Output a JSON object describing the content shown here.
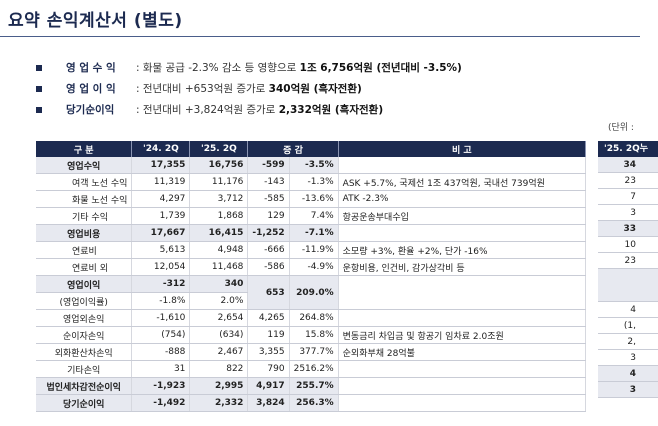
{
  "title": "요약 손익계산서 (별도)",
  "bullets": [
    {
      "label": "영 업 수 익",
      "text_pre": ": 화물 공급 -2.3% 감소 등 영향으로 ",
      "text_bold": "1조 6,756억원 (전년대비 -3.5%)"
    },
    {
      "label": "영 업 이 익",
      "text_pre": ": 전년대비 +653억원 증가로 ",
      "text_bold": "340억원 (흑자전환)"
    },
    {
      "label": "당기순이익",
      "text_pre": ": 전년대비 +3,824억원 증가로 ",
      "text_bold": "2,332억원 (흑자전환)"
    }
  ],
  "unit": "(단위 :",
  "table": {
    "headers": {
      "item": "구 분",
      "q24": "'24. 2Q",
      "q25": "'25. 2Q",
      "diff": "증 감",
      "note": "비 고"
    },
    "rows": {
      "r0": {
        "label": "영업수익",
        "q24": "17,355",
        "q25": "16,756",
        "d1": "-599",
        "d2": "-3.5%",
        "note": ""
      },
      "r1": {
        "label": "여객 노선 수익",
        "q24": "11,319",
        "q25": "11,176",
        "d1": "-143",
        "d2": "-1.3%",
        "note": "ASK +5.7%, 국제선 1조 437억원, 국내선 739억원"
      },
      "r2": {
        "label": "화물 노선 수익",
        "q24": "4,297",
        "q25": "3,712",
        "d1": "-585",
        "d2": "-13.6%",
        "note": "ATK -2.3%"
      },
      "r3": {
        "label": "기타 수익",
        "q24": "1,739",
        "q25": "1,868",
        "d1": "129",
        "d2": "7.4%",
        "note": "항공운송부대수입"
      },
      "r4": {
        "label": "영업비용",
        "q24": "17,667",
        "q25": "16,415",
        "d1": "-1,252",
        "d2": "-7.1%",
        "note": ""
      },
      "r5": {
        "label": "연료비",
        "q24": "5,613",
        "q25": "4,948",
        "d1": "-666",
        "d2": "-11.9%",
        "note": "소모량 +3%, 환율 +2%, 단가 -16%"
      },
      "r6": {
        "label": "연료비 외",
        "q24": "12,054",
        "q25": "11,468",
        "d1": "-586",
        "d2": "-4.9%",
        "note": "운항비용, 인건비, 감가상각비 등"
      },
      "r7": {
        "label": "영업이익",
        "label2": "(영업이익률)",
        "q24": "-312",
        "q24b": "-1.8%",
        "q25": "340",
        "q25b": "2.0%",
        "d1": "653",
        "d2": "209.0%",
        "note": ""
      },
      "r8": {
        "label": "영업외손익",
        "q24": "-1,610",
        "q25": "2,654",
        "d1": "4,265",
        "d2": "264.8%",
        "note": ""
      },
      "r9": {
        "label": "순이자손익",
        "q24": "(754)",
        "q25": "(634)",
        "d1": "119",
        "d2": "15.8%",
        "note": "변동금리 차입금 및 항공기 임차료 2.0조원"
      },
      "r10": {
        "label": "외화환산차손익",
        "q24": "-888",
        "q25": "2,467",
        "d1": "3,355",
        "d2": "377.7%",
        "note": "순외화부채 28억불"
      },
      "r11": {
        "label": "기타손익",
        "q24": "31",
        "q25": "822",
        "d1": "790",
        "d2": "2516.2%",
        "note": ""
      },
      "r12": {
        "label": "법인세차감전순이익",
        "q24": "-1,923",
        "q25": "2,995",
        "d1": "4,917",
        "d2": "255.7%",
        "note": ""
      },
      "r13": {
        "label": "당기순이익",
        "q24": "-1,492",
        "q25": "2,332",
        "d1": "3,824",
        "d2": "256.3%",
        "note": ""
      }
    }
  },
  "side_table": {
    "header": "'25. 2Q누",
    "cells": [
      "34",
      "23",
      "7",
      "3",
      "33",
      "10",
      "23",
      "",
      "4",
      "(1,",
      "2,",
      "3",
      "4",
      "3"
    ]
  }
}
